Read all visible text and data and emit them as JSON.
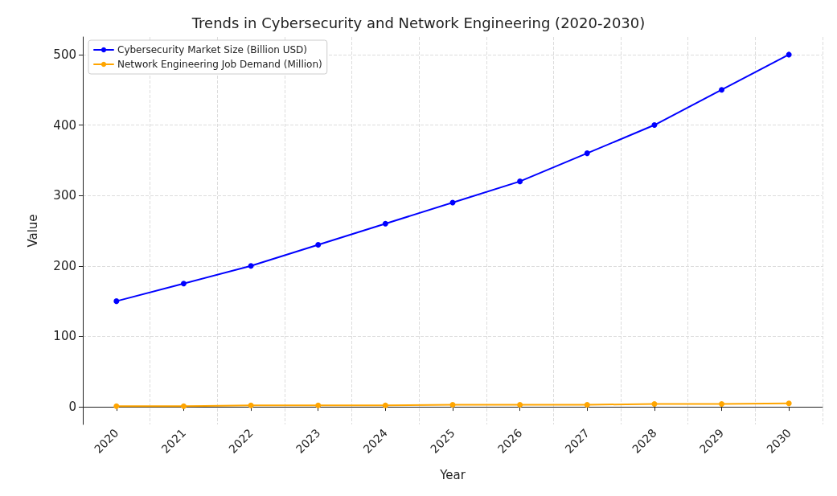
{
  "chart_data": {
    "type": "line",
    "title": "Trends in Cybersecurity and Network Engineering (2020-2030)",
    "xlabel": "Year",
    "ylabel": "Value",
    "categories": [
      "2020",
      "2021",
      "2022",
      "2023",
      "2024",
      "2025",
      "2026",
      "2027",
      "2028",
      "2029",
      "2030"
    ],
    "series": [
      {
        "name": "Cybersecurity Market Size (Billion USD)",
        "color": "#0000ff",
        "values": [
          150,
          175,
          200,
          230,
          260,
          290,
          320,
          360,
          400,
          450,
          500
        ]
      },
      {
        "name": "Network Engineering Job Demand (Million)",
        "color": "#ffa500",
        "values": [
          1,
          1,
          2,
          2,
          2,
          3,
          3,
          3,
          4,
          4,
          5
        ]
      }
    ],
    "ylim": [
      -25,
      525
    ],
    "yticks": [
      0,
      100,
      200,
      300,
      400,
      500
    ],
    "grid": true,
    "legend": "top left",
    "marker": "circle",
    "line_style": "solid"
  }
}
